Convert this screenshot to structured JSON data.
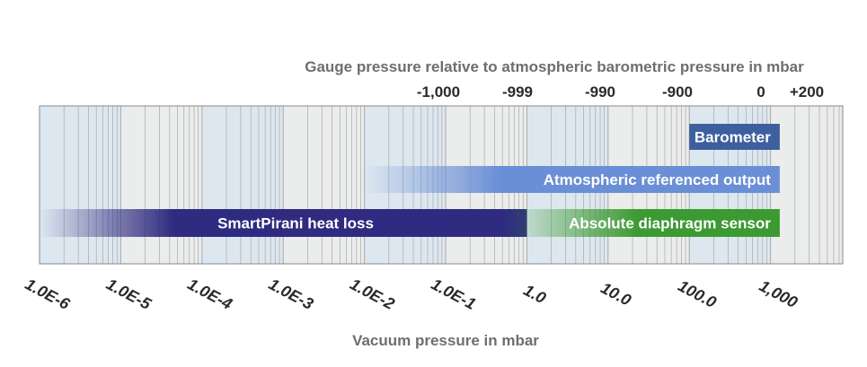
{
  "chart_data": {
    "type": "bar",
    "orientation": "horizontal",
    "scale": "log",
    "x_top_title": "Gauge pressure relative to atmospheric barometric pressure in mbar",
    "x_top_ticks": [
      {
        "label": "-1,000",
        "at": 0.1
      },
      {
        "label": "-999",
        "at": 1.0
      },
      {
        "label": "-990",
        "at": 10.0
      },
      {
        "label": "-900",
        "at": 100.0
      },
      {
        "label": "0",
        "at": 1000.0
      },
      {
        "label": "+200",
        "at": 1200.0
      }
    ],
    "x_bottom_title": "Vacuum pressure in mbar",
    "x_bottom_ticks": [
      "1.0E-6",
      "1.0E-5",
      "1.0E-4",
      "1.0E-3",
      "1.0E-2",
      "1.0E-1",
      "1.0",
      "10.0",
      "100.0",
      "1,000"
    ],
    "xlim": [
      1e-06,
      10000
    ],
    "grid": true,
    "bars": [
      {
        "name": "Barometer",
        "start": 100.0,
        "end": 1300.0,
        "color": "#3d5f9e",
        "fade_start": false
      },
      {
        "name": "Atmospheric referenced output",
        "start": 0.01,
        "end": 1300.0,
        "color": "#6b8fd6",
        "fade_start": true
      },
      {
        "name": "SmartPirani heat loss",
        "start": 1e-06,
        "end": 1.0,
        "color": "#2e2b80",
        "fade_start": true
      },
      {
        "name": "Absolute diaphragm sensor",
        "start": 0.5,
        "end": 1300.0,
        "color": "#3c9a33",
        "fade_start": true
      }
    ],
    "band_colors": [
      "#dde7f0",
      "#ebecec"
    ],
    "grid_color": "#a9a9a9"
  }
}
